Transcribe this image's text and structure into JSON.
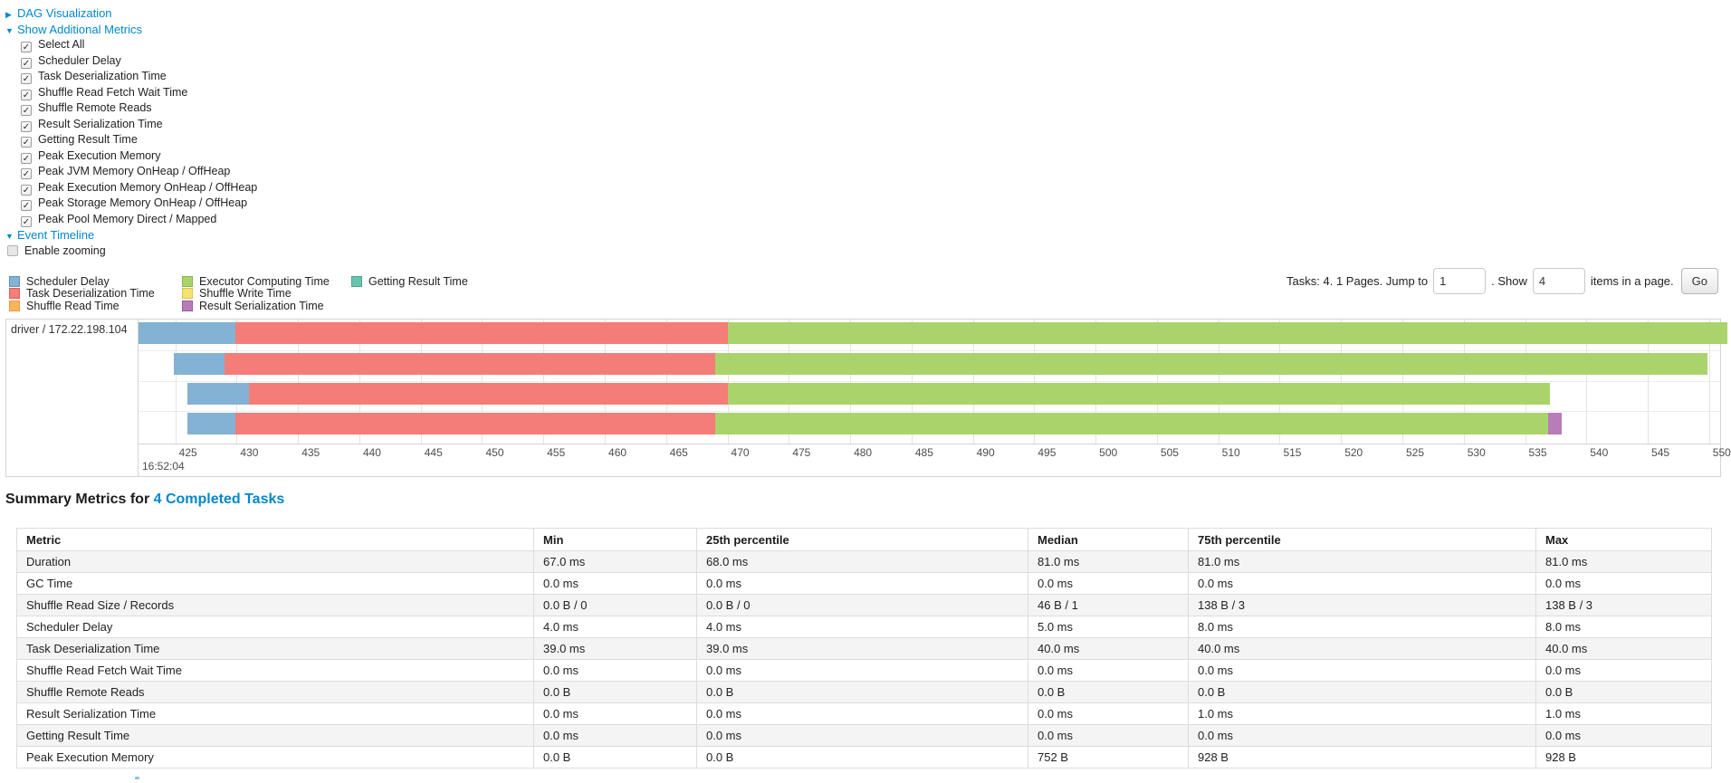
{
  "toggles": {
    "dag": {
      "arrow": "▶",
      "label": "DAG Visualization"
    },
    "additional_metrics": {
      "arrow": "▼",
      "label": "Show Additional Metrics"
    },
    "event_timeline": {
      "arrow": "▼",
      "label": "Event Timeline"
    },
    "enable_zooming_label": "Enable zooming"
  },
  "metric_checkboxes": [
    "Select All",
    "Scheduler Delay",
    "Task Deserialization Time",
    "Shuffle Read Fetch Wait Time",
    "Shuffle Remote Reads",
    "Result Serialization Time",
    "Getting Result Time",
    "Peak Execution Memory",
    "Peak JVM Memory OnHeap / OffHeap",
    "Peak Execution Memory OnHeap / OffHeap",
    "Peak Storage Memory OnHeap / OffHeap",
    "Peak Pool Memory Direct / Mapped"
  ],
  "colors": {
    "scheduler_delay": {
      "fill": "#83b2d4",
      "border": "#6191b4"
    },
    "task_deserialization": {
      "fill": "#f47d77",
      "border": "#e25b55"
    },
    "shuffle_read": {
      "fill": "#fbb45e",
      "border": "#ef9a3d"
    },
    "executor_computing": {
      "fill": "#aad46b",
      "border": "#8ab545"
    },
    "shuffle_write": {
      "fill": "#f4e272",
      "border": "#d9c54a"
    },
    "result_serialization": {
      "fill": "#b87cb8",
      "border": "#9a5c9a"
    },
    "getting_result": {
      "fill": "#6ac4ad",
      "border": "#4aa58c"
    }
  },
  "legend": {
    "columns": [
      [
        {
          "key": "scheduler_delay",
          "label": "Scheduler Delay"
        },
        {
          "key": "task_deserialization",
          "label": "Task Deserialization Time"
        },
        {
          "key": "shuffle_read",
          "label": "Shuffle Read Time"
        }
      ],
      [
        {
          "key": "executor_computing",
          "label": "Executor Computing Time"
        },
        {
          "key": "shuffle_write",
          "label": "Shuffle Write Time"
        },
        {
          "key": "result_serialization",
          "label": "Result Serialization Time"
        }
      ],
      [
        {
          "key": "getting_result",
          "label": "Getting Result Time"
        }
      ]
    ]
  },
  "pagination": {
    "tasks_text": "Tasks: 4. 1 Pages. Jump to",
    "jump_value": "1",
    "show_text": ". Show",
    "show_value": "4",
    "items_text": "items in a page.",
    "go_label": "Go"
  },
  "timeline": {
    "group_label": "driver / 172.22.198.104",
    "axis": {
      "start": 422.0,
      "end": 550.9,
      "major_label": "16:52:04"
    },
    "ticks": [
      425,
      430,
      435,
      440,
      445,
      450,
      455,
      460,
      465,
      470,
      475,
      480,
      485,
      490,
      495,
      500,
      505,
      510,
      515,
      520,
      525,
      530,
      535,
      540,
      545,
      550
    ],
    "bars": [
      {
        "start": 422.0,
        "segments": [
          {
            "key": "scheduler_delay",
            "end": 429.9
          },
          {
            "key": "task_deserialization",
            "end": 470.0
          },
          {
            "key": "executor_computing",
            "end": 551.5
          }
        ]
      },
      {
        "start": 424.9,
        "segments": [
          {
            "key": "scheduler_delay",
            "end": 429.0
          },
          {
            "key": "task_deserialization",
            "end": 469.0
          },
          {
            "key": "executor_computing",
            "end": 549.9
          }
        ]
      },
      {
        "start": 426.0,
        "segments": [
          {
            "key": "scheduler_delay",
            "end": 431.0
          },
          {
            "key": "task_deserialization",
            "end": 470.0
          },
          {
            "key": "executor_computing",
            "end": 537.0
          }
        ]
      },
      {
        "start": 426.0,
        "segments": [
          {
            "key": "scheduler_delay",
            "end": 429.9
          },
          {
            "key": "task_deserialization",
            "end": 469.0
          },
          {
            "key": "executor_computing",
            "end": 536.9
          },
          {
            "key": "result_serialization",
            "end": 538.0
          }
        ]
      }
    ]
  },
  "summary": {
    "title_prefix": "Summary Metrics for",
    "title_link": "4 Completed Tasks",
    "columns": [
      "Metric",
      "Min",
      "25th percentile",
      "Median",
      "75th percentile",
      "Max"
    ],
    "rows": [
      [
        "Duration",
        "67.0 ms",
        "68.0 ms",
        "81.0 ms",
        "81.0 ms",
        "81.0 ms"
      ],
      [
        "GC Time",
        "0.0 ms",
        "0.0 ms",
        "0.0 ms",
        "0.0 ms",
        "0.0 ms"
      ],
      [
        "Shuffle Read Size / Records",
        "0.0 B / 0",
        "0.0 B / 0",
        "46 B / 1",
        "138 B / 3",
        "138 B / 3"
      ],
      [
        "Scheduler Delay",
        "4.0 ms",
        "4.0 ms",
        "5.0 ms",
        "8.0 ms",
        "8.0 ms"
      ],
      [
        "Task Deserialization Time",
        "39.0 ms",
        "39.0 ms",
        "40.0 ms",
        "40.0 ms",
        "40.0 ms"
      ],
      [
        "Shuffle Read Fetch Wait Time",
        "0.0 ms",
        "0.0 ms",
        "0.0 ms",
        "0.0 ms",
        "0.0 ms"
      ],
      [
        "Shuffle Remote Reads",
        "0.0 B",
        "0.0 B",
        "0.0 B",
        "0.0 B",
        "0.0 B"
      ],
      [
        "Result Serialization Time",
        "0.0 ms",
        "0.0 ms",
        "0.0 ms",
        "1.0 ms",
        "1.0 ms"
      ],
      [
        "Getting Result Time",
        "0.0 ms",
        "0.0 ms",
        "0.0 ms",
        "0.0 ms",
        "0.0 ms"
      ],
      [
        "Peak Execution Memory",
        "0.0 B",
        "0.0 B",
        "752 B",
        "928 B",
        "928 B"
      ]
    ]
  }
}
